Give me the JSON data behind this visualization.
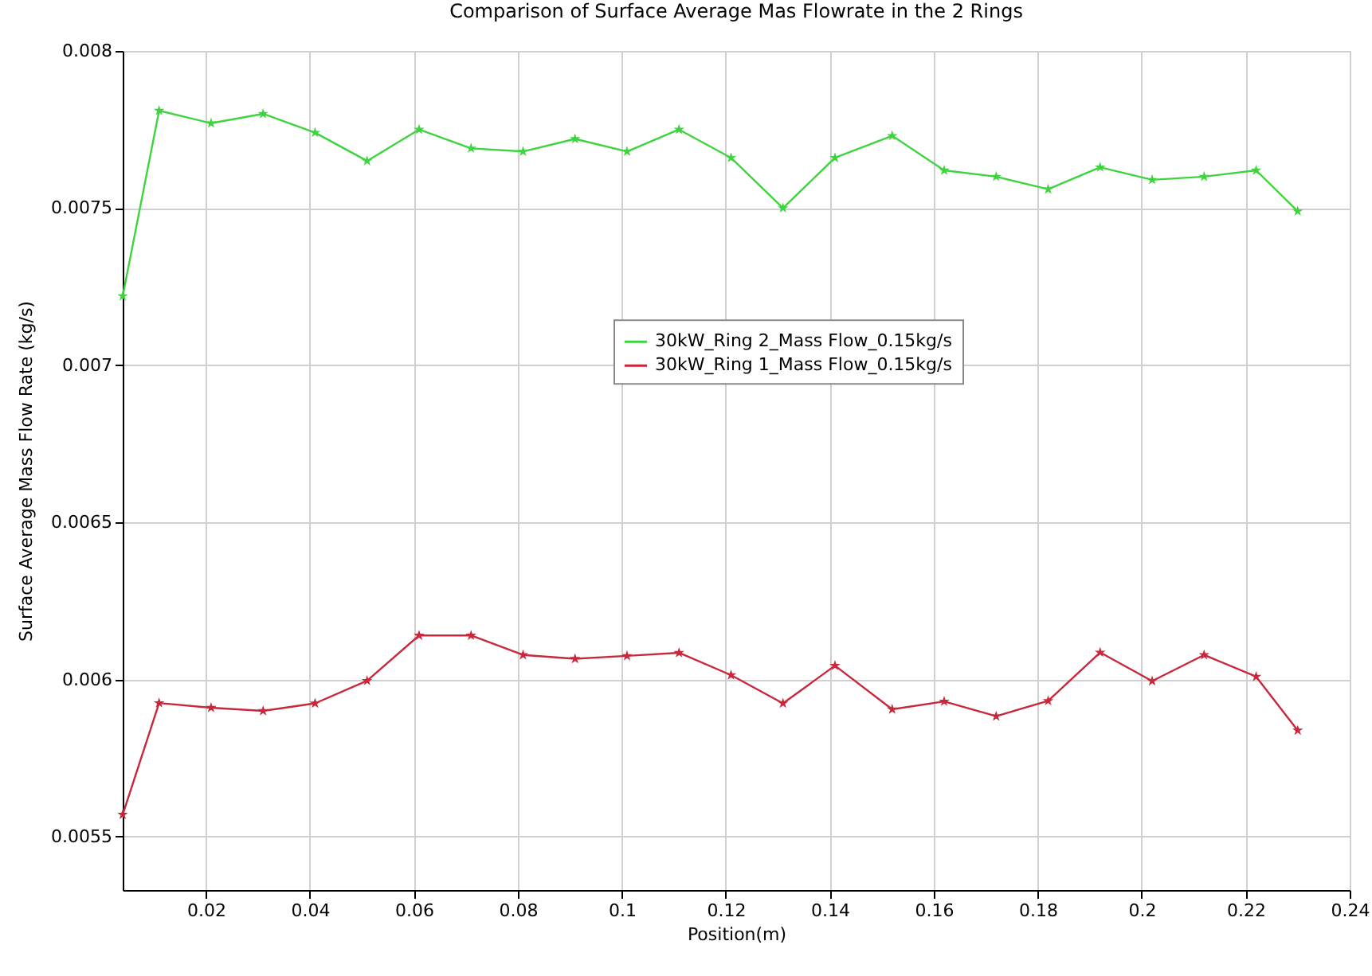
{
  "chart_data": {
    "type": "line",
    "title": "Comparison of Surface Average Mas Flowrate in the 2 Rings",
    "xlabel": "Position(m)",
    "ylabel": "Surface Average Mass Flow Rate (kg/s)",
    "x": [
      0.004,
      0.011,
      0.021,
      0.031,
      0.041,
      0.051,
      0.061,
      0.071,
      0.081,
      0.091,
      0.101,
      0.111,
      0.121,
      0.131,
      0.141,
      0.152,
      0.162,
      0.172,
      0.182,
      0.192,
      0.202,
      0.212,
      0.222,
      0.23
    ],
    "series": [
      {
        "name": "30kW_Ring 2_Mass Flow_0.15kg/s",
        "color": "#3fd43f",
        "values": [
          0.00722,
          0.00781,
          0.00777,
          0.0078,
          0.00774,
          0.00765,
          0.00775,
          0.00769,
          0.00768,
          0.00772,
          0.00768,
          0.00775,
          0.00766,
          0.0075,
          0.00766,
          0.00773,
          0.00762,
          0.0076,
          0.00756,
          0.00763,
          0.00759,
          0.0076,
          0.00762,
          0.00749
        ]
      },
      {
        "name": "30kW_Ring 1_Mass Flow_0.15kg/s",
        "color": "#c8283c",
        "values": [
          0.00557,
          0.005925,
          0.00591,
          0.0059,
          0.005924,
          0.005996,
          0.00614,
          0.00614,
          0.006078,
          0.006066,
          0.006075,
          0.006085,
          0.006014,
          0.005924,
          0.006044,
          0.005905,
          0.00593,
          0.005883,
          0.005932,
          0.006086,
          0.005995,
          0.006078,
          0.006009,
          0.005838
        ]
      }
    ],
    "xlim": [
      0.004,
      0.24
    ],
    "xticks": [
      0.02,
      0.04,
      0.06,
      0.08,
      0.1,
      0.12,
      0.14,
      0.16,
      0.18,
      0.2,
      0.22,
      0.24
    ],
    "ylim": [
      0.00533,
      0.008
    ],
    "yticks": [
      0.0055,
      0.006,
      0.0065,
      0.007,
      0.0075,
      0.008
    ],
    "grid": true,
    "legend": "top",
    "marker": "star",
    "line_style": "solid"
  }
}
